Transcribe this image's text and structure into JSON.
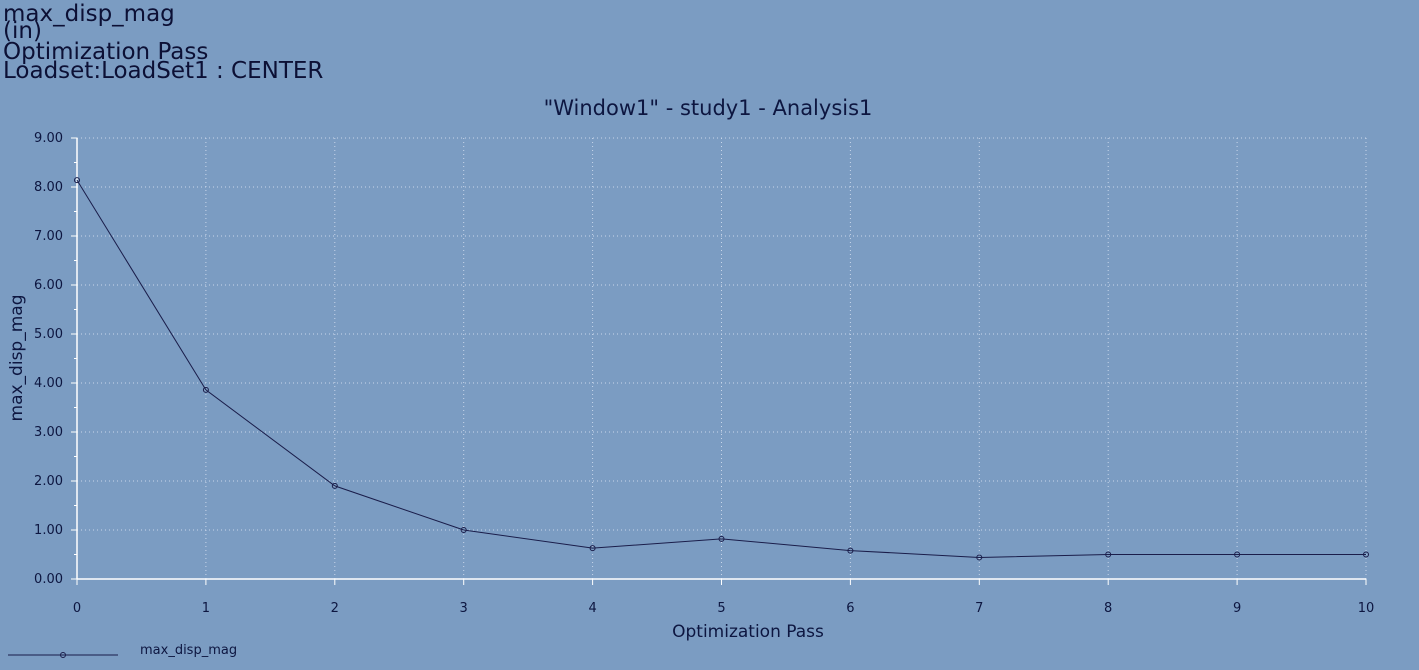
{
  "header": {
    "line1": "max_disp_mag",
    "line2": "(in)",
    "line3": "Optimization Pass",
    "line4": "Loadset:LoadSet1 :  CENTER"
  },
  "colors": {
    "background": "#7b9cc2",
    "series": "#1a1d4a",
    "grid": "#c8d6ea",
    "axis": "#ffffff",
    "text": "#0d1640"
  },
  "chart_data": {
    "type": "line",
    "title": "\"Window1\" - study1 - Analysis1",
    "xlabel": "Optimization Pass",
    "ylabel": "max_disp_mag",
    "xlim": [
      0,
      10
    ],
    "ylim": [
      0,
      9
    ],
    "x_ticks": [
      "0",
      "1",
      "2",
      "3",
      "4",
      "5",
      "6",
      "7",
      "8",
      "9",
      "10"
    ],
    "y_ticks": [
      "0.00",
      "1.00",
      "2.00",
      "3.00",
      "4.00",
      "5.00",
      "6.00",
      "7.00",
      "8.00",
      "9.00"
    ],
    "grid": true,
    "legend_position": "bottom-left",
    "series": [
      {
        "name": "max_disp_mag",
        "x": [
          0,
          1,
          2,
          3,
          4,
          5,
          6,
          7,
          8,
          9,
          10
        ],
        "y": [
          8.14,
          3.86,
          1.9,
          1.0,
          0.63,
          0.82,
          0.58,
          0.44,
          0.5,
          0.5,
          0.5
        ]
      }
    ]
  }
}
